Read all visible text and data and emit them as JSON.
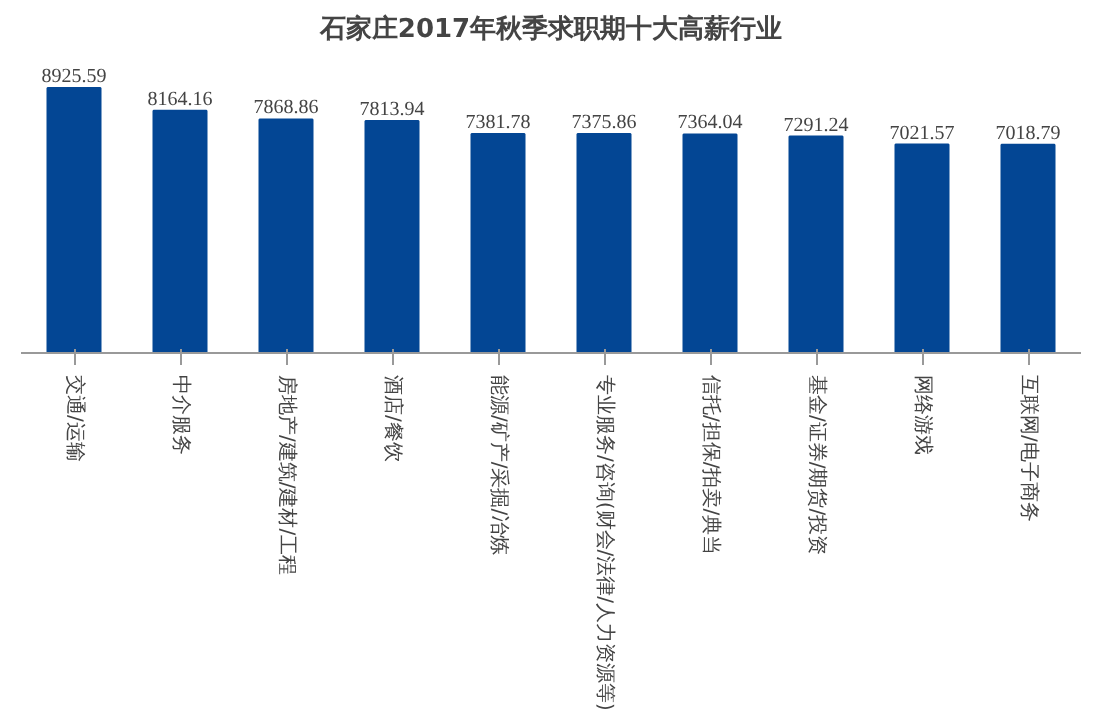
{
  "chart_data": {
    "type": "bar",
    "title": "石家庄2017年秋季求职期十大高薪行业",
    "categories": [
      "交通/运输",
      "中介服务",
      "房地产/建筑/建材/工程",
      "酒店/餐饮",
      "能源/矿产/采掘/冶炼",
      "专业服务/咨询(财会/法律/人力资源等)",
      "信托/担保/拍卖/典当",
      "基金/证券/期货/投资",
      "网络游戏",
      "互联网/电子商务"
    ],
    "values": [
      8925.59,
      8164.16,
      7868.86,
      7813.94,
      7381.78,
      7375.86,
      7364.04,
      7291.24,
      7021.57,
      7018.79
    ],
    "color": "#034694",
    "tick_labels": "x",
    "data_labels": true,
    "grid": false
  }
}
